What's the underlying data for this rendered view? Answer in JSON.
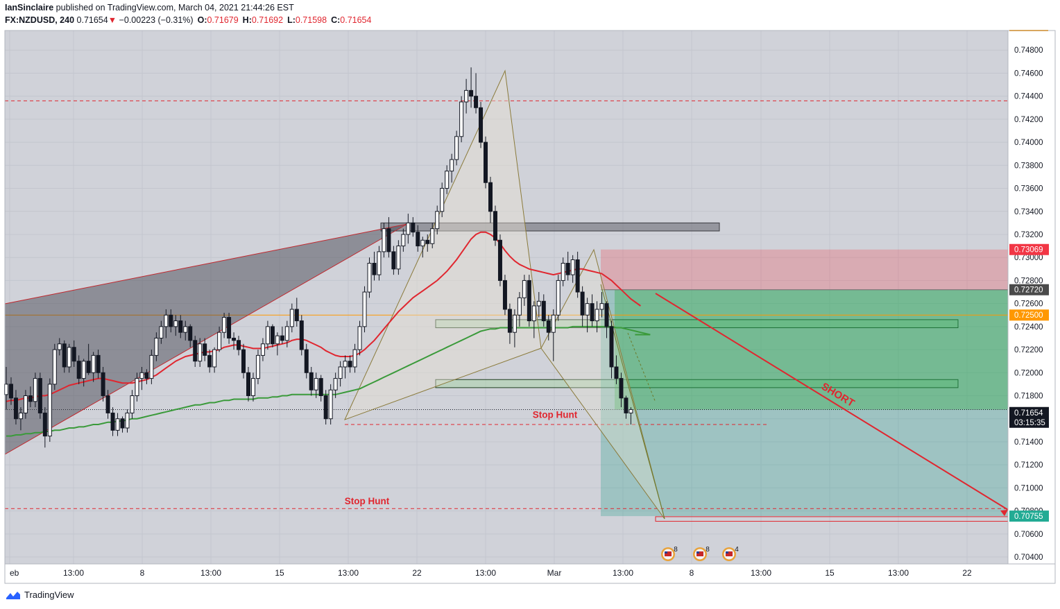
{
  "header": {
    "author": "IanSinclaire",
    "published_text": "published on TradingView.com, March 04, 2021 21:44:26 EST",
    "symbol": "FX:NZDUSD, 240",
    "last": "0.71654",
    "down_arrow": "▼",
    "change": "−0.00223 (−0.31%)",
    "o_label": "O:",
    "o_value": "0.71679",
    "h_label": "H:",
    "h_value": "0.71692",
    "l_label": "L:",
    "l_value": "0.71598",
    "c_label": "C:",
    "c_value": "0.71654"
  },
  "footer": {
    "brand": "TradingView"
  },
  "chart_data": {
    "type": "candlestick",
    "symbol": "FX:NZDUSD",
    "interval": "240",
    "ylim": [
      0.7034,
      0.7497
    ],
    "y_ticks": [
      "0.74800",
      "0.74600",
      "0.74400",
      "0.74200",
      "0.74000",
      "0.73800",
      "0.73600",
      "0.73400",
      "0.73200",
      "0.73000",
      "0.72800",
      "0.72600",
      "0.72400",
      "0.72200",
      "0.72000",
      "0.71800",
      "0.71600",
      "0.71400",
      "0.71200",
      "0.71000",
      "0.70800",
      "0.70600",
      "0.70400"
    ],
    "x_ticks": [
      "eb",
      "13:00",
      "8",
      "13:00",
      "15",
      "13:00",
      "22",
      "13:00",
      "Mar",
      "13:00",
      "8",
      "13:00",
      "15",
      "13:00",
      "22"
    ],
    "price_labels": [
      {
        "text": "0.73069",
        "value": 0.73069,
        "color": "#f23645"
      },
      {
        "text": "0.72720",
        "value": 0.7272,
        "color": "#4a4a4a"
      },
      {
        "text": "0.72500",
        "value": 0.725,
        "color": "#ff9800"
      },
      {
        "text": "0.71654",
        "value": 0.71654,
        "color": "#131722",
        "countdown": "03:15:35"
      },
      {
        "text": "0.70755",
        "value": 0.70755,
        "color": "#22ab94"
      }
    ],
    "position": {
      "side": "short",
      "entry": 0.7272,
      "stop": 0.73069,
      "target": 0.70755
    },
    "annotations": [
      {
        "text": "Stop Hunt",
        "value": 0.7163
      },
      {
        "text": "Stop Hunt",
        "value": 0.7081
      },
      {
        "text": "SHORT"
      }
    ],
    "horizontal_lines": [
      {
        "value": 0.7436,
        "style": "dashed",
        "color": "#e0262f"
      },
      {
        "value": 0.725,
        "style": "solid",
        "color": "#ff9800"
      },
      {
        "value": 0.7082,
        "style": "dashed",
        "color": "#e0262f"
      },
      {
        "value": 0.7155,
        "style": "dashed",
        "color": "#e0262f"
      }
    ],
    "zones": [
      {
        "top": 0.733,
        "bottom": 0.7323
      },
      {
        "top": 0.7246,
        "bottom": 0.7239
      },
      {
        "top": 0.7194,
        "bottom": 0.7187
      },
      {
        "top": 0.7075,
        "bottom": 0.7071
      }
    ],
    "series": [
      {
        "name": "MA fast",
        "color": "#e0262f"
      },
      {
        "name": "MA slow",
        "color": "#3a9a3a"
      }
    ],
    "ohlc": [
      [
        0.7181,
        0.7205,
        0.7168,
        0.719
      ],
      [
        0.719,
        0.7196,
        0.7172,
        0.7178
      ],
      [
        0.7178,
        0.7185,
        0.7155,
        0.716
      ],
      [
        0.716,
        0.717,
        0.715,
        0.7165
      ],
      [
        0.7165,
        0.7185,
        0.716,
        0.718
      ],
      [
        0.718,
        0.7188,
        0.717,
        0.7175
      ],
      [
        0.7175,
        0.72,
        0.717,
        0.7195
      ],
      [
        0.7195,
        0.72,
        0.716,
        0.7165
      ],
      [
        0.7165,
        0.717,
        0.7135,
        0.7145
      ],
      [
        0.7145,
        0.7195,
        0.714,
        0.719
      ],
      [
        0.719,
        0.7225,
        0.7185,
        0.722
      ],
      [
        0.722,
        0.723,
        0.7215,
        0.7225
      ],
      [
        0.7225,
        0.7228,
        0.72,
        0.7205
      ],
      [
        0.7205,
        0.7225,
        0.72,
        0.7222
      ],
      [
        0.7222,
        0.7228,
        0.7205,
        0.721
      ],
      [
        0.721,
        0.7215,
        0.719,
        0.7195
      ],
      [
        0.7195,
        0.7212,
        0.7188,
        0.721
      ],
      [
        0.721,
        0.7225,
        0.7198,
        0.72
      ],
      [
        0.72,
        0.7218,
        0.7192,
        0.7215
      ],
      [
        0.7215,
        0.722,
        0.7195,
        0.72
      ],
      [
        0.72,
        0.7205,
        0.7175,
        0.718
      ],
      [
        0.718,
        0.7185,
        0.716,
        0.7165
      ],
      [
        0.7165,
        0.717,
        0.7145,
        0.715
      ],
      [
        0.715,
        0.7165,
        0.7145,
        0.716
      ],
      [
        0.716,
        0.7162,
        0.7148,
        0.7152
      ],
      [
        0.7152,
        0.7168,
        0.7148,
        0.7165
      ],
      [
        0.7165,
        0.7185,
        0.716,
        0.718
      ],
      [
        0.718,
        0.72,
        0.7175,
        0.7195
      ],
      [
        0.7195,
        0.7205,
        0.7185,
        0.72
      ],
      [
        0.72,
        0.7203,
        0.719,
        0.7195
      ],
      [
        0.7195,
        0.722,
        0.719,
        0.7215
      ],
      [
        0.7215,
        0.7235,
        0.721,
        0.723
      ],
      [
        0.723,
        0.7245,
        0.7225,
        0.724
      ],
      [
        0.724,
        0.7255,
        0.723,
        0.725
      ],
      [
        0.725,
        0.7255,
        0.7235,
        0.724
      ],
      [
        0.724,
        0.725,
        0.7232,
        0.7245
      ],
      [
        0.7245,
        0.725,
        0.723,
        0.7235
      ],
      [
        0.7235,
        0.7245,
        0.7228,
        0.724
      ],
      [
        0.724,
        0.7242,
        0.7222,
        0.7228
      ],
      [
        0.7228,
        0.7232,
        0.7205,
        0.721
      ],
      [
        0.721,
        0.723,
        0.7205,
        0.7225
      ],
      [
        0.7225,
        0.723,
        0.721,
        0.7215
      ],
      [
        0.7215,
        0.722,
        0.72,
        0.7205
      ],
      [
        0.7205,
        0.7222,
        0.72,
        0.722
      ],
      [
        0.722,
        0.724,
        0.7218,
        0.7235
      ],
      [
        0.7235,
        0.7252,
        0.723,
        0.7248
      ],
      [
        0.7248,
        0.7252,
        0.7225,
        0.723
      ],
      [
        0.723,
        0.7235,
        0.722,
        0.7228
      ],
      [
        0.7228,
        0.7232,
        0.7215,
        0.722
      ],
      [
        0.722,
        0.7225,
        0.7195,
        0.72
      ],
      [
        0.72,
        0.7205,
        0.7175,
        0.718
      ],
      [
        0.718,
        0.72,
        0.7175,
        0.7195
      ],
      [
        0.7195,
        0.722,
        0.719,
        0.7215
      ],
      [
        0.7215,
        0.723,
        0.721,
        0.7225
      ],
      [
        0.7225,
        0.7245,
        0.722,
        0.724
      ],
      [
        0.724,
        0.7242,
        0.7222,
        0.7225
      ],
      [
        0.7225,
        0.7235,
        0.7215,
        0.7232
      ],
      [
        0.7232,
        0.724,
        0.7225,
        0.7228
      ],
      [
        0.7228,
        0.7245,
        0.7222,
        0.724
      ],
      [
        0.724,
        0.726,
        0.7235,
        0.7255
      ],
      [
        0.7255,
        0.7265,
        0.724,
        0.7245
      ],
      [
        0.7245,
        0.725,
        0.7215,
        0.722
      ],
      [
        0.722,
        0.7225,
        0.7195,
        0.72
      ],
      [
        0.72,
        0.7205,
        0.718,
        0.7185
      ],
      [
        0.7185,
        0.72,
        0.7178,
        0.7195
      ],
      [
        0.7195,
        0.7198,
        0.7175,
        0.718
      ],
      [
        0.718,
        0.7185,
        0.7155,
        0.716
      ],
      [
        0.716,
        0.719,
        0.7155,
        0.7185
      ],
      [
        0.7185,
        0.72,
        0.7178,
        0.7195
      ],
      [
        0.7195,
        0.721,
        0.7188,
        0.7205
      ],
      [
        0.7205,
        0.7215,
        0.7195,
        0.721
      ],
      [
        0.721,
        0.7215,
        0.72,
        0.7205
      ],
      [
        0.7205,
        0.7225,
        0.72,
        0.722
      ],
      [
        0.722,
        0.7245,
        0.7215,
        0.724
      ],
      [
        0.724,
        0.7275,
        0.7235,
        0.727
      ],
      [
        0.727,
        0.73,
        0.7265,
        0.7295
      ],
      [
        0.7295,
        0.7305,
        0.728,
        0.7285
      ],
      [
        0.7285,
        0.731,
        0.728,
        0.7305
      ],
      [
        0.7305,
        0.733,
        0.73,
        0.7325
      ],
      [
        0.7325,
        0.7335,
        0.73,
        0.7305
      ],
      [
        0.7305,
        0.731,
        0.7285,
        0.729
      ],
      [
        0.729,
        0.7315,
        0.7285,
        0.731
      ],
      [
        0.731,
        0.7325,
        0.7305,
        0.732
      ],
      [
        0.732,
        0.7338,
        0.7312,
        0.733
      ],
      [
        0.733,
        0.7335,
        0.7318,
        0.7322
      ],
      [
        0.7322,
        0.7328,
        0.7305,
        0.731
      ],
      [
        0.731,
        0.7318,
        0.73,
        0.7315
      ],
      [
        0.7315,
        0.732,
        0.7305,
        0.7312
      ],
      [
        0.7312,
        0.733,
        0.7308,
        0.7325
      ],
      [
        0.7325,
        0.7345,
        0.732,
        0.734
      ],
      [
        0.734,
        0.7365,
        0.7335,
        0.736
      ],
      [
        0.736,
        0.738,
        0.7355,
        0.7375
      ],
      [
        0.7375,
        0.739,
        0.7365,
        0.7385
      ],
      [
        0.7385,
        0.741,
        0.738,
        0.7405
      ],
      [
        0.7405,
        0.744,
        0.74,
        0.7435
      ],
      [
        0.7435,
        0.7455,
        0.7425,
        0.7445
      ],
      [
        0.7445,
        0.7465,
        0.743,
        0.744
      ],
      [
        0.744,
        0.746,
        0.7425,
        0.743
      ],
      [
        0.743,
        0.7435,
        0.7395,
        0.74
      ],
      [
        0.74,
        0.7405,
        0.736,
        0.7365
      ],
      [
        0.7365,
        0.737,
        0.733,
        0.734
      ],
      [
        0.734,
        0.7345,
        0.731,
        0.7315
      ],
      [
        0.7315,
        0.732,
        0.7275,
        0.728
      ],
      [
        0.728,
        0.7285,
        0.725,
        0.7255
      ],
      [
        0.7255,
        0.726,
        0.7225,
        0.7235
      ],
      [
        0.7235,
        0.7255,
        0.7222,
        0.725
      ],
      [
        0.725,
        0.727,
        0.724,
        0.7265
      ],
      [
        0.7265,
        0.7285,
        0.7258,
        0.728
      ],
      [
        0.728,
        0.7285,
        0.724,
        0.7245
      ],
      [
        0.7245,
        0.7262,
        0.723,
        0.7258
      ],
      [
        0.7258,
        0.727,
        0.7248,
        0.7262
      ],
      [
        0.7262,
        0.7268,
        0.724,
        0.7245
      ],
      [
        0.7245,
        0.725,
        0.7228,
        0.7235
      ],
      [
        0.7235,
        0.7255,
        0.721,
        0.725
      ],
      [
        0.725,
        0.7285,
        0.7245,
        0.728
      ],
      [
        0.728,
        0.73,
        0.7275,
        0.7295
      ],
      [
        0.7295,
        0.7305,
        0.728,
        0.7285
      ],
      [
        0.7285,
        0.7302,
        0.7278,
        0.7298
      ],
      [
        0.7298,
        0.7305,
        0.7265,
        0.727
      ],
      [
        0.727,
        0.7275,
        0.724,
        0.725
      ],
      [
        0.725,
        0.7265,
        0.7235,
        0.726
      ],
      [
        0.726,
        0.7268,
        0.724,
        0.7245
      ],
      [
        0.7245,
        0.7262,
        0.7235,
        0.7255
      ],
      [
        0.7255,
        0.727,
        0.7248,
        0.726
      ],
      [
        0.726,
        0.7262,
        0.723,
        0.724
      ],
      [
        0.724,
        0.7245,
        0.7195,
        0.7205
      ],
      [
        0.7205,
        0.7215,
        0.719,
        0.7195
      ],
      [
        0.7195,
        0.72,
        0.717,
        0.7178
      ],
      [
        0.7178,
        0.718,
        0.716,
        0.7165
      ],
      [
        0.7165,
        0.717,
        0.7155,
        0.7168
      ]
    ],
    "ma_fast": [
      0.7175,
      0.7176,
      0.7176,
      0.7177,
      0.7178,
      0.7178,
      0.7179,
      0.718,
      0.718,
      0.7181,
      0.7183,
      0.7185,
      0.7187,
      0.7189,
      0.719,
      0.7191,
      0.7192,
      0.7193,
      0.7194,
      0.7195,
      0.7195,
      0.7194,
      0.7193,
      0.7192,
      0.7191,
      0.7191,
      0.7191,
      0.7192,
      0.7193,
      0.7194,
      0.7196,
      0.7198,
      0.7201,
      0.7204,
      0.7207,
      0.721,
      0.7212,
      0.7214,
      0.7215,
      0.7216,
      0.7217,
      0.7218,
      0.7218,
      0.7219,
      0.722,
      0.7222,
      0.7223,
      0.7224,
      0.7224,
      0.7223,
      0.7222,
      0.7221,
      0.7221,
      0.7221,
      0.7222,
      0.7223,
      0.7224,
      0.7225,
      0.7226,
      0.7228,
      0.7229,
      0.7229,
      0.7228,
      0.7226,
      0.7224,
      0.7222,
      0.7219,
      0.7217,
      0.7215,
      0.7214,
      0.7214,
      0.7214,
      0.7215,
      0.7217,
      0.722,
      0.7224,
      0.7228,
      0.7233,
      0.7238,
      0.7243,
      0.7248,
      0.7253,
      0.7257,
      0.7261,
      0.7265,
      0.7268,
      0.7271,
      0.7274,
      0.7277,
      0.728,
      0.7284,
      0.7288,
      0.7293,
      0.7298,
      0.7304,
      0.731,
      0.7316,
      0.732,
      0.7322,
      0.7322,
      0.732,
      0.7317,
      0.7312,
      0.7306,
      0.7301,
      0.7297,
      0.7294,
      0.7292,
      0.729,
      0.7289,
      0.7288,
      0.7287,
      0.7286,
      0.7285,
      0.7286,
      0.7287,
      0.7288,
      0.7289,
      0.729,
      0.729,
      0.7289,
      0.7288,
      0.7287,
      0.7286,
      0.7283,
      0.728,
      0.7276,
      0.7272,
      0.7268,
      0.7264,
      0.7261,
      0.7258
    ],
    "ma_slow": [
      0.7145,
      0.7145,
      0.7146,
      0.7146,
      0.7147,
      0.7147,
      0.7148,
      0.7148,
      0.7149,
      0.7149,
      0.715,
      0.715,
      0.7151,
      0.7152,
      0.7152,
      0.7153,
      0.7153,
      0.7154,
      0.7155,
      0.7155,
      0.7156,
      0.7157,
      0.7157,
      0.7158,
      0.7158,
      0.7159,
      0.716,
      0.716,
      0.7161,
      0.7162,
      0.7163,
      0.7164,
      0.7165,
      0.7166,
      0.7167,
      0.7168,
      0.7169,
      0.717,
      0.7171,
      0.7172,
      0.7172,
      0.7173,
      0.7174,
      0.7174,
      0.7175,
      0.7176,
      0.7176,
      0.7177,
      0.7177,
      0.7177,
      0.7177,
      0.7177,
      0.7178,
      0.7178,
      0.7178,
      0.7179,
      0.7179,
      0.718,
      0.718,
      0.7181,
      0.7181,
      0.7181,
      0.7181,
      0.7181,
      0.7181,
      0.7181,
      0.7181,
      0.7181,
      0.7181,
      0.7182,
      0.7183,
      0.7184,
      0.7185,
      0.7186,
      0.7188,
      0.719,
      0.7192,
      0.7194,
      0.7196,
      0.7198,
      0.72,
      0.7202,
      0.7204,
      0.7206,
      0.7208,
      0.721,
      0.7212,
      0.7214,
      0.7216,
      0.7218,
      0.722,
      0.7222,
      0.7224,
      0.7226,
      0.7228,
      0.723,
      0.7232,
      0.7234,
      0.7236,
      0.7237,
      0.7238,
      0.7238,
      0.7239,
      0.7239,
      0.7239,
      0.7239,
      0.7239,
      0.7239,
      0.7239,
      0.7239,
      0.7239,
      0.7239,
      0.7239,
      0.7239,
      0.7239,
      0.7239,
      0.7239,
      0.724,
      0.724,
      0.724,
      0.724,
      0.724,
      0.724,
      0.724,
      0.724,
      0.724,
      0.7239,
      0.7239,
      0.7238,
      0.7237,
      0.7236,
      0.7235,
      0.7234,
      0.7233
    ],
    "event_badges": [
      "8",
      "8",
      "4"
    ]
  }
}
